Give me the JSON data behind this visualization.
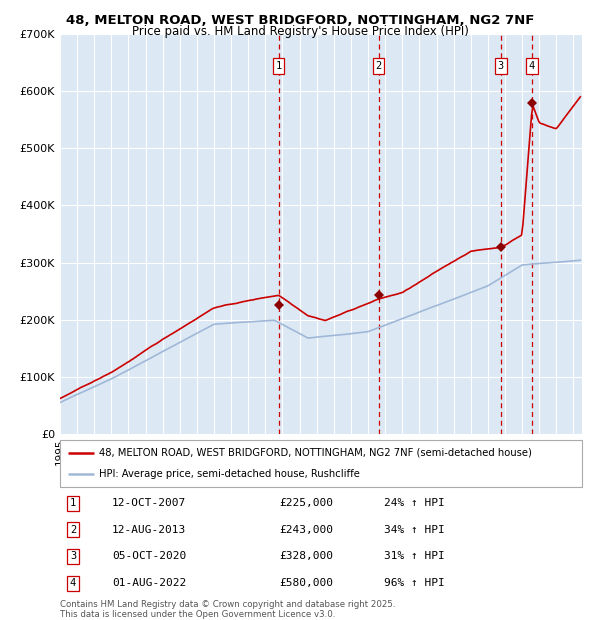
{
  "title": "48, MELTON ROAD, WEST BRIDGFORD, NOTTINGHAM, NG2 7NF",
  "subtitle": "Price paid vs. HM Land Registry's House Price Index (HPI)",
  "bg_color": "#ffffff",
  "plot_bg_color": "#dce9f5",
  "grid_color": "#ffffff",
  "hpi_color": "#a0b8d8",
  "price_color": "#cc0000",
  "sale_marker_color": "#8b0000",
  "vline_color": "#cc0000",
  "ylim": [
    0,
    700000
  ],
  "yticks": [
    0,
    100000,
    200000,
    300000,
    400000,
    500000,
    600000,
    700000
  ],
  "ytick_labels": [
    "£0",
    "£100K",
    "£200K",
    "£300K",
    "£400K",
    "£500K",
    "£600K",
    "£700K"
  ],
  "sale_events": [
    {
      "num": 1,
      "date": "12-OCT-2007",
      "price": 225000,
      "pct": "24% ↑ HPI",
      "year": 2007.78
    },
    {
      "num": 2,
      "date": "12-AUG-2013",
      "price": 243000,
      "pct": "34% ↑ HPI",
      "year": 2013.61
    },
    {
      "num": 3,
      "date": "05-OCT-2020",
      "price": 328000,
      "pct": "31% ↑ HPI",
      "year": 2020.76
    },
    {
      "num": 4,
      "date": "01-AUG-2022",
      "price": 580000,
      "pct": "96% ↑ HPI",
      "year": 2022.58
    }
  ],
  "legend_line1": "48, MELTON ROAD, WEST BRIDGFORD, NOTTINGHAM, NG2 7NF (semi-detached house)",
  "legend_line2": "HPI: Average price, semi-detached house, Rushcliffe",
  "footer": "Contains HM Land Registry data © Crown copyright and database right 2025.\nThis data is licensed under the Open Government Licence v3.0.",
  "xmin": 1995.0,
  "xmax": 2025.5
}
